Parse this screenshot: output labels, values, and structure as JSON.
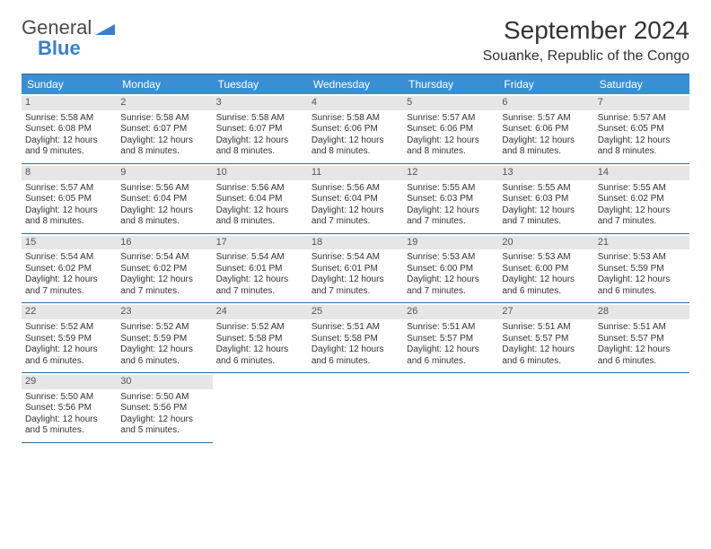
{
  "brand": {
    "word1": "General",
    "word2": "Blue"
  },
  "title": {
    "month": "September 2024",
    "location": "Souanke, Republic of the Congo"
  },
  "colors": {
    "header_bg": "#3a8fd4",
    "header_text": "#ffffff",
    "border": "#2d6aa3",
    "daynum_bg": "#e6e6e6",
    "text": "#333333",
    "logo_blue": "#3a7fc4"
  },
  "dow": [
    "Sunday",
    "Monday",
    "Tuesday",
    "Wednesday",
    "Thursday",
    "Friday",
    "Saturday"
  ],
  "labels": {
    "sunrise": "Sunrise:",
    "sunset": "Sunset:",
    "daylight": "Daylight:"
  },
  "days": [
    {
      "n": 1,
      "sr": "5:58 AM",
      "ss": "6:08 PM",
      "dl": "12 hours and 9 minutes."
    },
    {
      "n": 2,
      "sr": "5:58 AM",
      "ss": "6:07 PM",
      "dl": "12 hours and 8 minutes."
    },
    {
      "n": 3,
      "sr": "5:58 AM",
      "ss": "6:07 PM",
      "dl": "12 hours and 8 minutes."
    },
    {
      "n": 4,
      "sr": "5:58 AM",
      "ss": "6:06 PM",
      "dl": "12 hours and 8 minutes."
    },
    {
      "n": 5,
      "sr": "5:57 AM",
      "ss": "6:06 PM",
      "dl": "12 hours and 8 minutes."
    },
    {
      "n": 6,
      "sr": "5:57 AM",
      "ss": "6:06 PM",
      "dl": "12 hours and 8 minutes."
    },
    {
      "n": 7,
      "sr": "5:57 AM",
      "ss": "6:05 PM",
      "dl": "12 hours and 8 minutes."
    },
    {
      "n": 8,
      "sr": "5:57 AM",
      "ss": "6:05 PM",
      "dl": "12 hours and 8 minutes."
    },
    {
      "n": 9,
      "sr": "5:56 AM",
      "ss": "6:04 PM",
      "dl": "12 hours and 8 minutes."
    },
    {
      "n": 10,
      "sr": "5:56 AM",
      "ss": "6:04 PM",
      "dl": "12 hours and 8 minutes."
    },
    {
      "n": 11,
      "sr": "5:56 AM",
      "ss": "6:04 PM",
      "dl": "12 hours and 7 minutes."
    },
    {
      "n": 12,
      "sr": "5:55 AM",
      "ss": "6:03 PM",
      "dl": "12 hours and 7 minutes."
    },
    {
      "n": 13,
      "sr": "5:55 AM",
      "ss": "6:03 PM",
      "dl": "12 hours and 7 minutes."
    },
    {
      "n": 14,
      "sr": "5:55 AM",
      "ss": "6:02 PM",
      "dl": "12 hours and 7 minutes."
    },
    {
      "n": 15,
      "sr": "5:54 AM",
      "ss": "6:02 PM",
      "dl": "12 hours and 7 minutes."
    },
    {
      "n": 16,
      "sr": "5:54 AM",
      "ss": "6:02 PM",
      "dl": "12 hours and 7 minutes."
    },
    {
      "n": 17,
      "sr": "5:54 AM",
      "ss": "6:01 PM",
      "dl": "12 hours and 7 minutes."
    },
    {
      "n": 18,
      "sr": "5:54 AM",
      "ss": "6:01 PM",
      "dl": "12 hours and 7 minutes."
    },
    {
      "n": 19,
      "sr": "5:53 AM",
      "ss": "6:00 PM",
      "dl": "12 hours and 7 minutes."
    },
    {
      "n": 20,
      "sr": "5:53 AM",
      "ss": "6:00 PM",
      "dl": "12 hours and 6 minutes."
    },
    {
      "n": 21,
      "sr": "5:53 AM",
      "ss": "5:59 PM",
      "dl": "12 hours and 6 minutes."
    },
    {
      "n": 22,
      "sr": "5:52 AM",
      "ss": "5:59 PM",
      "dl": "12 hours and 6 minutes."
    },
    {
      "n": 23,
      "sr": "5:52 AM",
      "ss": "5:59 PM",
      "dl": "12 hours and 6 minutes."
    },
    {
      "n": 24,
      "sr": "5:52 AM",
      "ss": "5:58 PM",
      "dl": "12 hours and 6 minutes."
    },
    {
      "n": 25,
      "sr": "5:51 AM",
      "ss": "5:58 PM",
      "dl": "12 hours and 6 minutes."
    },
    {
      "n": 26,
      "sr": "5:51 AM",
      "ss": "5:57 PM",
      "dl": "12 hours and 6 minutes."
    },
    {
      "n": 27,
      "sr": "5:51 AM",
      "ss": "5:57 PM",
      "dl": "12 hours and 6 minutes."
    },
    {
      "n": 28,
      "sr": "5:51 AM",
      "ss": "5:57 PM",
      "dl": "12 hours and 6 minutes."
    },
    {
      "n": 29,
      "sr": "5:50 AM",
      "ss": "5:56 PM",
      "dl": "12 hours and 5 minutes."
    },
    {
      "n": 30,
      "sr": "5:50 AM",
      "ss": "5:56 PM",
      "dl": "12 hours and 5 minutes."
    }
  ],
  "layout": {
    "start_offset": 0,
    "trailing_empty": 5
  }
}
